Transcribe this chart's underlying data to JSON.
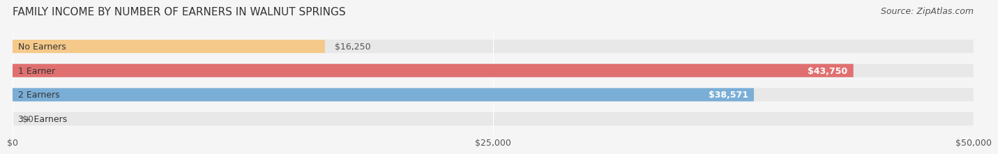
{
  "title": "FAMILY INCOME BY NUMBER OF EARNERS IN WALNUT SPRINGS",
  "source": "Source: ZipAtlas.com",
  "categories": [
    "No Earners",
    "1 Earner",
    "2 Earners",
    "3+ Earners"
  ],
  "values": [
    16250,
    43750,
    38571,
    0
  ],
  "labels": [
    "$16,250",
    "$43,750",
    "$38,571",
    "$0"
  ],
  "bar_colors": [
    "#f5c98a",
    "#e07070",
    "#7aaed6",
    "#c9a8d4"
  ],
  "bar_bg_color": "#e8e8e8",
  "background_color": "#f5f5f5",
  "xlim": [
    0,
    50000
  ],
  "xticks": [
    0,
    25000,
    50000
  ],
  "xticklabels": [
    "$0",
    "$25,000",
    "$50,000"
  ],
  "title_fontsize": 11,
  "source_fontsize": 9,
  "label_fontsize": 9,
  "category_fontsize": 9,
  "bar_height": 0.55,
  "bar_label_inside_color": "#ffffff",
  "bar_label_outside_color": "#555555"
}
